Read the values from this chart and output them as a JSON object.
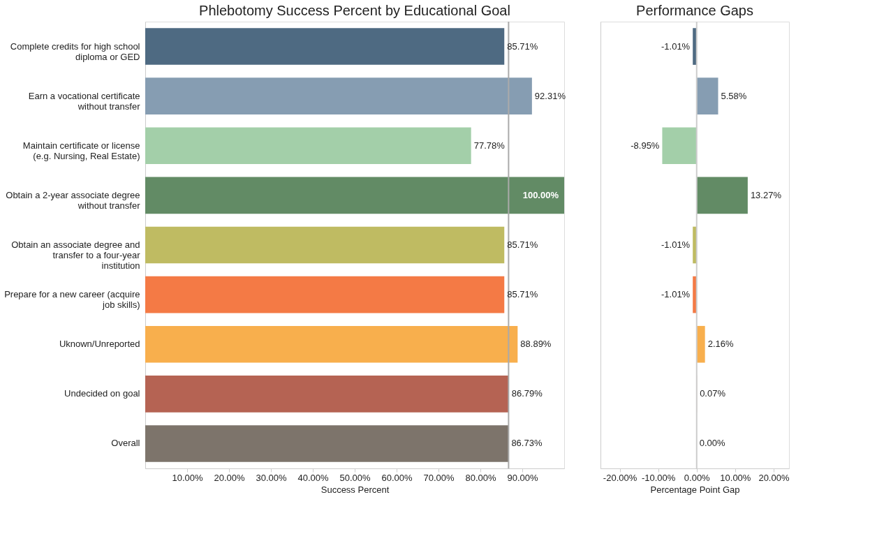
{
  "chart_data": [
    {
      "type": "bar",
      "orientation": "horizontal",
      "title": "Phlebotomy Success Percent by Educational Goal",
      "xlabel": "Success Percent",
      "categories": [
        "Complete credits for high school diploma or GED",
        "Earn a vocational certificate without transfer",
        "Maintain certificate or license (e.g. Nursing, Real Estate)",
        "Obtain a 2-year associate degree without transfer",
        "Obtain an associate degree and transfer to a four-year institution",
        "Prepare for a new career (acquire job skills)",
        "Uknown/Unreported",
        "Undecided on goal",
        "Overall"
      ],
      "values": [
        85.71,
        92.31,
        77.78,
        100.0,
        85.71,
        85.71,
        88.89,
        86.79,
        86.73
      ],
      "value_labels": [
        "85.71%",
        "92.31%",
        "77.78%",
        "100.00%",
        "85.71%",
        "85.71%",
        "88.89%",
        "86.79%",
        "86.73%"
      ],
      "colors": [
        "#4e6a82",
        "#869db2",
        "#a3cfa9",
        "#628b65",
        "#bfbb62",
        "#f47a45",
        "#f8af4d",
        "#b56353",
        "#7d746b"
      ],
      "xlim": [
        0,
        100
      ],
      "xticks": [
        {
          "value": 10,
          "label": "10.00%"
        },
        {
          "value": 20,
          "label": "20.00%"
        },
        {
          "value": 30,
          "label": "30.00%"
        },
        {
          "value": 40,
          "label": "40.00%"
        },
        {
          "value": 50,
          "label": "50.00%"
        },
        {
          "value": 60,
          "label": "60.00%"
        },
        {
          "value": 70,
          "label": "70.00%"
        },
        {
          "value": 80,
          "label": "80.00%"
        },
        {
          "value": 90,
          "label": "90.00%"
        }
      ],
      "ref_lines": [
        {
          "axis": "x",
          "value": 86.73,
          "color": "#aaaaaa"
        }
      ],
      "grid": false,
      "legend": false
    },
    {
      "type": "bar",
      "orientation": "horizontal",
      "title": "Performance Gaps",
      "xlabel": "Percentage Point Gap",
      "categories": [
        null,
        null,
        null,
        null,
        null,
        null,
        null,
        null,
        null
      ],
      "values": [
        -1.01,
        5.58,
        -8.95,
        13.27,
        -1.01,
        -1.01,
        2.16,
        0.07,
        0.0
      ],
      "value_labels": [
        "-1.01%",
        "5.58%",
        "-8.95%",
        "13.27%",
        "-1.01%",
        "-1.01%",
        "2.16%",
        "0.07%",
        "0.00%"
      ],
      "colors": [
        "#4e6a82",
        "#869db2",
        "#a3cfa9",
        "#628b65",
        "#bfbb62",
        "#f47a45",
        "#f8af4d",
        "#b56353",
        "#7d746b"
      ],
      "xlim": [
        -25,
        24
      ],
      "xticks": [
        {
          "value": -20,
          "label": "-20.00%"
        },
        {
          "value": -10,
          "label": "-10.00%"
        },
        {
          "value": 0,
          "label": "0.00%"
        },
        {
          "value": 10,
          "label": "10.00%"
        },
        {
          "value": 20,
          "label": "20.00%"
        }
      ],
      "ref_lines": [
        {
          "axis": "x",
          "value": 0,
          "color": "#cccccc"
        }
      ],
      "grid": false,
      "legend": false
    }
  ]
}
